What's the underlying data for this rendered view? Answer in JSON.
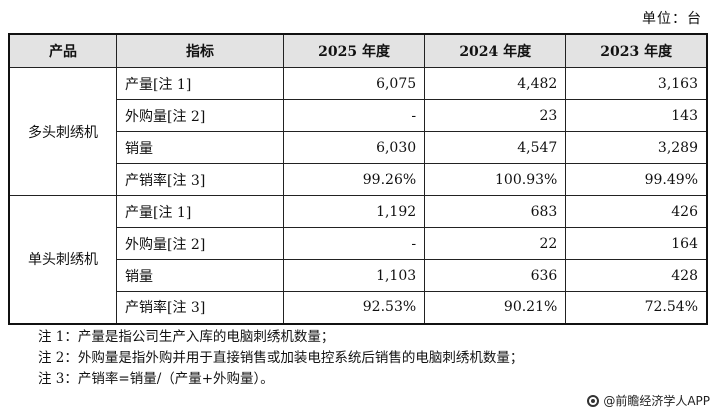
{
  "unit": "单位：台",
  "table": {
    "headers": [
      "产品",
      "指标",
      "2025 年度",
      "2024 年度",
      "2023 年度"
    ],
    "groups": [
      {
        "name": "多头刺绣机",
        "rows": [
          {
            "metric": "产量[注 1]",
            "v2025": "6,075",
            "v2024": "4,482",
            "v2023": "3,163"
          },
          {
            "metric": "外购量[注 2]",
            "v2025": "-",
            "v2024": "23",
            "v2023": "143"
          },
          {
            "metric": "销量",
            "v2025": "6,030",
            "v2024": "4,547",
            "v2023": "3,289"
          },
          {
            "metric": "产销率[注 3]",
            "v2025": "99.26%",
            "v2024": "100.93%",
            "v2023": "99.49%"
          }
        ]
      },
      {
        "name": "单头刺绣机",
        "rows": [
          {
            "metric": "产量[注 1]",
            "v2025": "1,192",
            "v2024": "683",
            "v2023": "426"
          },
          {
            "metric": "外购量[注 2]",
            "v2025": "-",
            "v2024": "22",
            "v2023": "164"
          },
          {
            "metric": "销量",
            "v2025": "1,103",
            "v2024": "636",
            "v2023": "428"
          },
          {
            "metric": "产销率[注 3]",
            "v2025": "92.53%",
            "v2024": "90.21%",
            "v2023": "72.54%"
          }
        ]
      }
    ]
  },
  "notes": [
    "注 1：产量是指公司生产入库的电脑刺绣机数量；",
    "注 2：外购量是指外购并用于直接销售或加装电控系统后销售的电脑刺绣机数量；",
    "注 3：产销率=销量/（产量+外购量）。"
  ],
  "footer": {
    "source": "@前瞻经济学人APP"
  }
}
